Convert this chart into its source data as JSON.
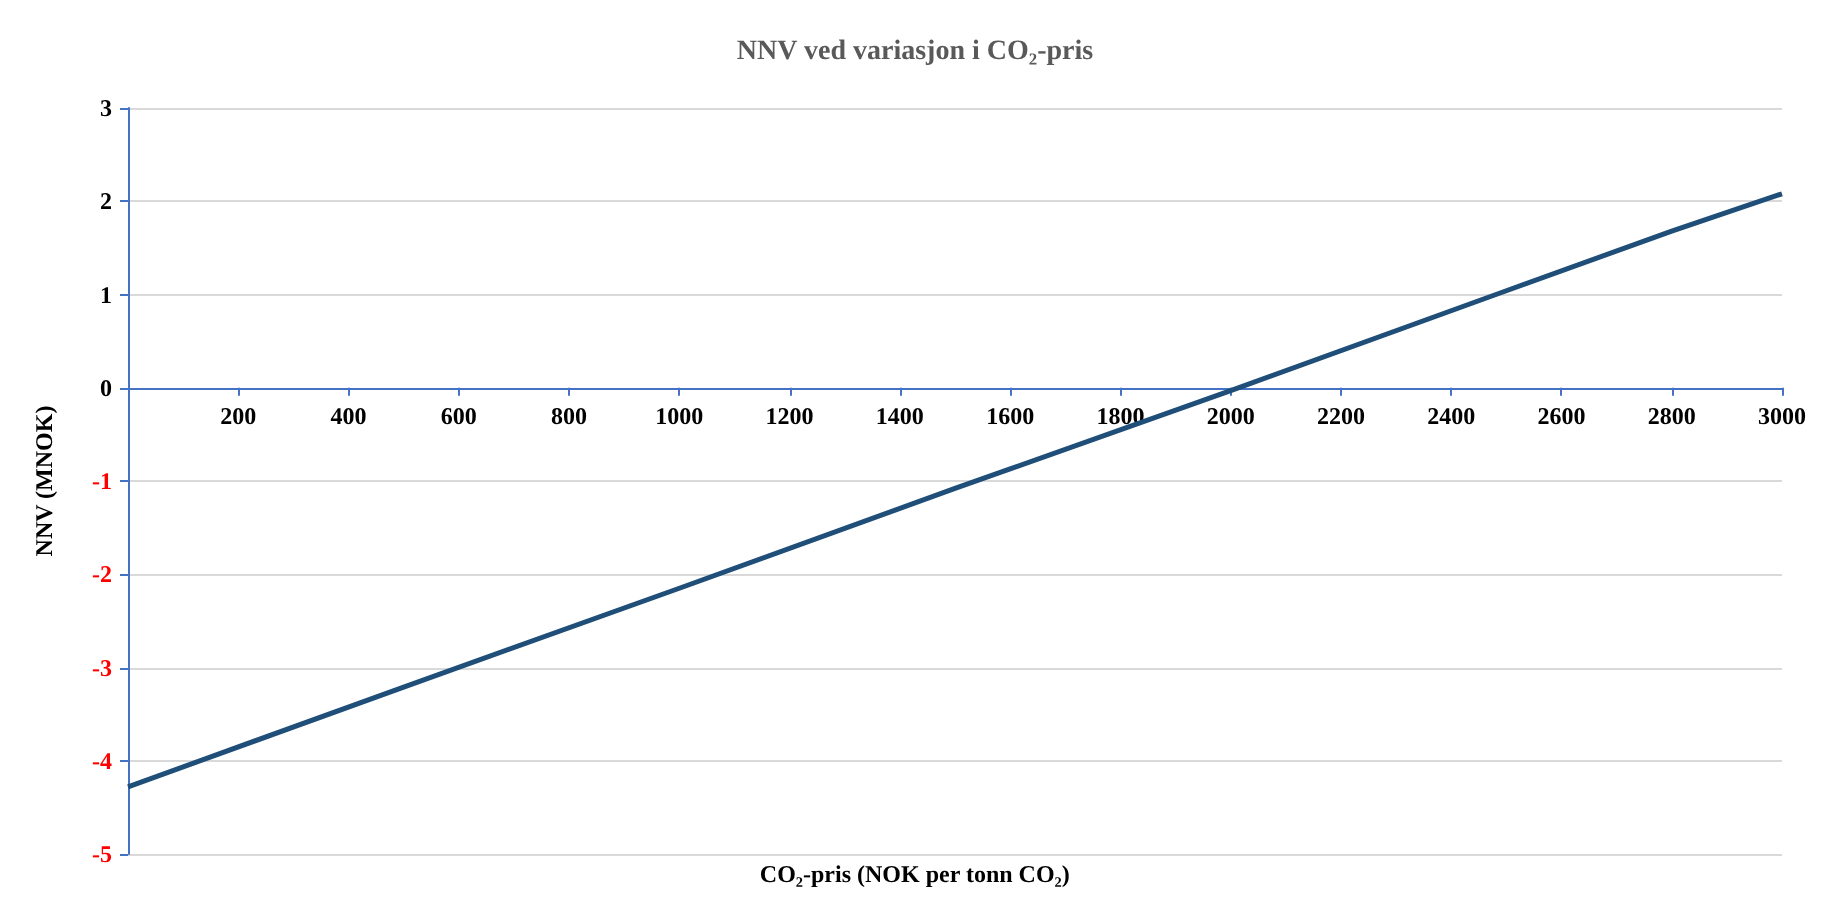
{
  "chart_data": {
    "type": "line",
    "title": "NNV ved variasjon i CO₂-pris",
    "xlabel": "CO₂-pris (NOK per tonn CO₂)",
    "ylabel": "NNV (MNOK)",
    "x": [
      0,
      500,
      1000,
      1500,
      1600,
      2000,
      2500,
      2800,
      3000
    ],
    "series": [
      {
        "color": "#1f4e79",
        "values": [
          -4.28,
          -3.21,
          -2.15,
          -1.08,
          -0.87,
          -0.03,
          1.04,
          1.68,
          2.08
        ]
      }
    ],
    "xlim": [
      0,
      3000
    ],
    "xticks": [
      200,
      400,
      600,
      800,
      1000,
      1200,
      1400,
      1600,
      1800,
      2000,
      2200,
      2400,
      2600,
      2800,
      3000
    ],
    "ylim": [
      -5,
      3
    ],
    "yticks": [
      -5,
      -4,
      -3,
      -2,
      -1,
      0,
      1,
      2,
      3
    ],
    "grid": "y",
    "legend": false,
    "marker": "none",
    "line_style": "solid"
  }
}
